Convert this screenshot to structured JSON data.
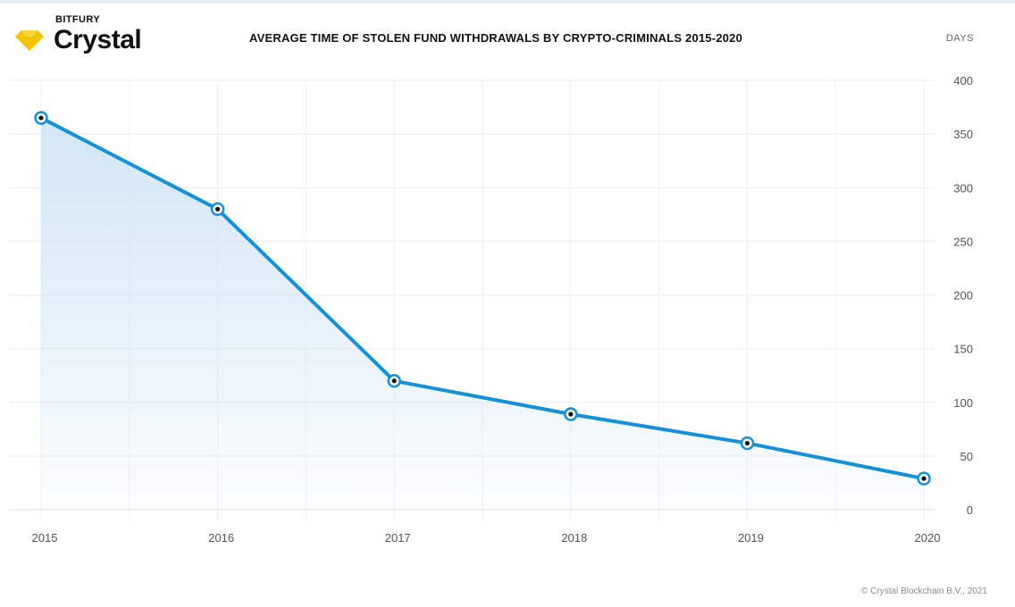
{
  "header": {
    "brand_top": "BITFURY",
    "brand_name": "Crystal",
    "brand_logo": "diamond-icon",
    "brand_color": "#f5c400"
  },
  "footer": {
    "copyright": "© Crystal Blockchain B.V., 2021"
  },
  "chart_data": {
    "type": "area",
    "title": "AVERAGE TIME OF STOLEN FUND WITHDRAWALS BY CRYPTO-CRIMINALS 2015-2020",
    "ylabel": "DAYS",
    "xlabel": "",
    "x": [
      "2015",
      "2016",
      "2017",
      "2018",
      "2019",
      "2020"
    ],
    "series": [
      {
        "values": [
          365,
          280,
          120,
          89,
          62,
          29
        ]
      }
    ],
    "ylim": [
      0,
      400
    ],
    "yticks": [
      0,
      50,
      100,
      150,
      200,
      250,
      300,
      350,
      400
    ],
    "y_axis_position": "right",
    "grid": true,
    "legend": "none",
    "colors": {
      "line": "#1591d9",
      "fill": "#cfe5f6",
      "marker_center": "#111111",
      "grid": "#ececec"
    }
  }
}
